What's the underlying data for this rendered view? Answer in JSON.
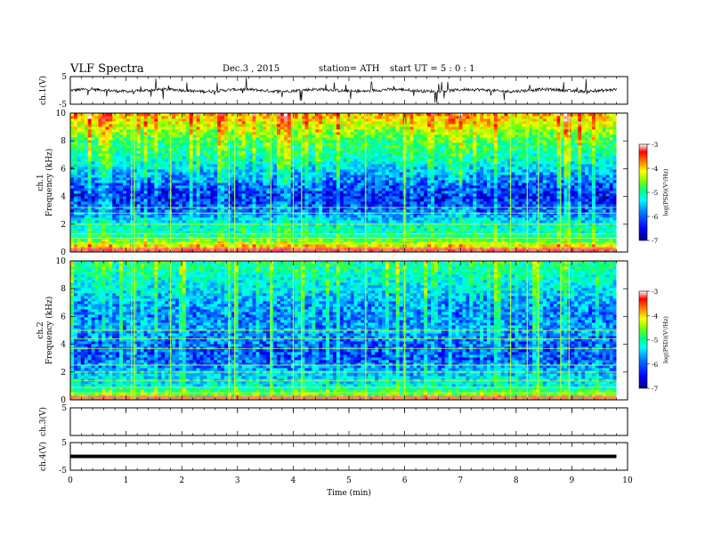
{
  "header": {
    "title": "VLF  Spectra",
    "date": "Dec.3  , 2015",
    "station": "station= ATH",
    "start_ut": "start  UT  =   5  : 0  : 1"
  },
  "colors": {
    "colormap": [
      "#000080",
      "#0000ff",
      "#0080ff",
      "#00ffff",
      "#00ff80",
      "#80ff00",
      "#ffff00",
      "#ff8000",
      "#ff0000",
      "#ffffff"
    ]
  },
  "chart_data": [
    {
      "type": "line",
      "name": "ch1-waveform",
      "ylabel": "ch.1(V)",
      "ylim": [
        -5,
        5
      ],
      "yticks": [
        "5",
        "-5"
      ],
      "xlim": [
        0,
        10
      ],
      "x_extent": [
        0,
        9.8
      ],
      "trace_level_v": 0,
      "trace_amplitude_v": 1.2
    },
    {
      "type": "heatmap",
      "name": "ch1-spectrogram",
      "ylabel": "ch.1\nFrequency  (kHz)",
      "ylim": [
        0,
        10
      ],
      "yticks": [
        "0",
        "2",
        "4",
        "6",
        "8",
        "10"
      ],
      "xlim": [
        0,
        10
      ],
      "x_extent": [
        0,
        9.8
      ],
      "colorbar": {
        "label": "log(PSD)(V²/Hz)",
        "range": [
          -7,
          -3
        ],
        "ticks": [
          "-3",
          "-4",
          "-5",
          "-6",
          "-7"
        ]
      },
      "band_profile_log_psd": [
        {
          "f": 0.25,
          "v": -4.0
        },
        {
          "f": 1.0,
          "v": -5.3
        },
        {
          "f": 2.0,
          "v": -5.6
        },
        {
          "f": 3.0,
          "v": -6.2
        },
        {
          "f": 4.0,
          "v": -6.5
        },
        {
          "f": 5.0,
          "v": -6.2
        },
        {
          "f": 6.0,
          "v": -5.8
        },
        {
          "f": 7.0,
          "v": -5.4
        },
        {
          "f": 8.0,
          "v": -5.1
        },
        {
          "f": 9.0,
          "v": -4.6
        },
        {
          "f": 9.9,
          "v": -4.1
        }
      ],
      "line_frequencies_khz": [
        0.3,
        0.6,
        1.0,
        1.3,
        2.0,
        2.8,
        3.2
      ],
      "sferic_times_min": [
        1.1,
        1.15,
        1.8,
        2.85,
        2.95,
        3.6,
        4.0,
        4.15,
        5.3,
        6.0,
        7.9,
        8.2,
        8.4,
        8.8,
        8.95
      ]
    },
    {
      "type": "heatmap",
      "name": "ch2-spectrogram",
      "ylabel": "ch.2\nFrequency  (kHz)",
      "ylim": [
        0,
        10
      ],
      "yticks": [
        "0",
        "2",
        "4",
        "6",
        "8",
        "10"
      ],
      "xlim": [
        0,
        10
      ],
      "x_extent": [
        0,
        9.8
      ],
      "colorbar": {
        "label": "log(PSD)(V²/Hz)",
        "range": [
          -7,
          -3
        ],
        "ticks": [
          "-3",
          "-4",
          "-5",
          "-6",
          "-7"
        ]
      },
      "band_profile_log_psd": [
        {
          "f": 0.25,
          "v": -4.6
        },
        {
          "f": 1.0,
          "v": -5.6
        },
        {
          "f": 2.0,
          "v": -5.9
        },
        {
          "f": 3.0,
          "v": -6.3
        },
        {
          "f": 4.0,
          "v": -6.2
        },
        {
          "f": 5.0,
          "v": -6.0
        },
        {
          "f": 6.0,
          "v": -6.1
        },
        {
          "f": 7.0,
          "v": -6.0
        },
        {
          "f": 8.0,
          "v": -5.7
        },
        {
          "f": 9.0,
          "v": -5.5
        },
        {
          "f": 9.9,
          "v": -5.3
        }
      ],
      "line_frequencies_khz": [
        0.5,
        0.9,
        1.4,
        2.0,
        2.5,
        3.7,
        4.4,
        5.0
      ],
      "sferic_times_min": [
        1.1,
        1.15,
        1.8,
        2.85,
        2.95,
        3.6,
        4.0,
        4.15,
        5.3,
        6.0,
        7.9,
        8.2,
        8.4,
        8.8,
        8.95
      ]
    },
    {
      "type": "line",
      "name": "ch3-waveform",
      "ylabel": "ch.3(V)",
      "ylim": [
        -5,
        5
      ],
      "yticks": [
        "5"
      ],
      "xlim": [
        0,
        10
      ],
      "x_extent": [
        0,
        9.8
      ],
      "trace_level_v": 5,
      "trace_amplitude_v": 0
    },
    {
      "type": "line",
      "name": "ch4-waveform",
      "ylabel": "ch.4(V)",
      "ylim": [
        -5,
        5
      ],
      "yticks": [
        "5",
        "-5"
      ],
      "xlim": [
        0,
        10
      ],
      "x_extent": [
        0,
        9.8
      ],
      "trace_level_v": 0,
      "trace_amplitude_v": 0.15
    }
  ],
  "x_axis": {
    "label": "Time  (min)",
    "ticks": [
      "0",
      "1",
      "2",
      "3",
      "4",
      "5",
      "6",
      "7",
      "8",
      "9",
      "10"
    ]
  }
}
